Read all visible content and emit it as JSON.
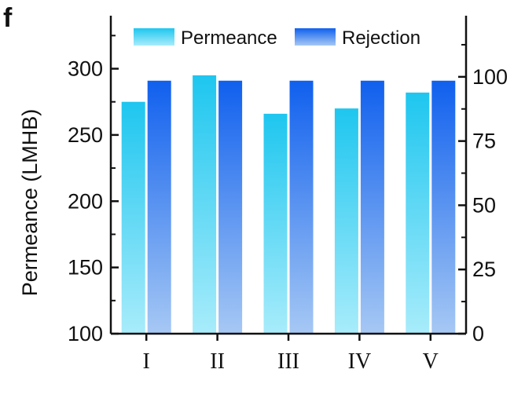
{
  "panel_label": "f",
  "chart_data": {
    "type": "bar",
    "categories": [
      "I",
      "II",
      "III",
      "IV",
      "V"
    ],
    "series": [
      {
        "name": "Permeance",
        "axis": "left",
        "values": [
          275,
          295,
          266,
          270,
          282
        ]
      },
      {
        "name": "Rejection",
        "axis": "right",
        "values": [
          98.5,
          98.5,
          98.5,
          98.5,
          98.5
        ]
      }
    ],
    "ylabel": "Permeance (LMHB)",
    "ylim": [
      100,
      340
    ],
    "y2lim": [
      0,
      123.8
    ],
    "yticks": [
      100,
      150,
      200,
      250,
      300
    ],
    "y2ticks": [
      0,
      25,
      50,
      75,
      100
    ],
    "legend_position": "top",
    "colors": {
      "permeance_top": "#1ec6ef",
      "permeance_bottom": "#a8ecfb",
      "rejection_top": "#1060ee",
      "rejection_bottom": "#a6c8f4"
    }
  }
}
